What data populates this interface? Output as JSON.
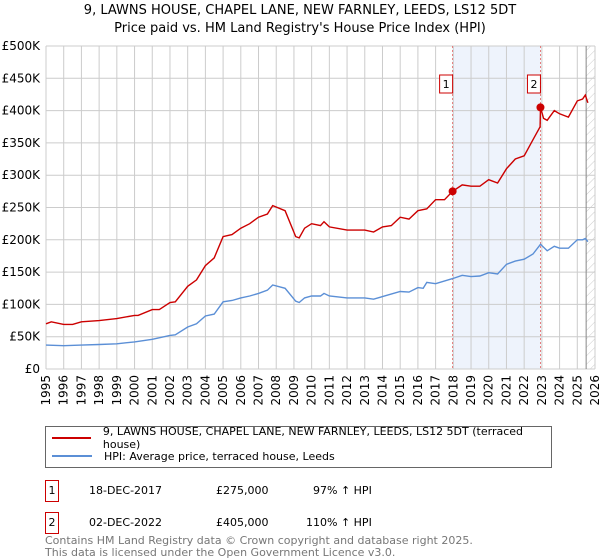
{
  "title": "9, LAWNS HOUSE, CHAPEL LANE, NEW FARNLEY, LEEDS, LS12 5DT",
  "subtitle": "Price paid vs. HM Land Registry's House Price Index (HPI)",
  "chart_data": {
    "type": "line",
    "xlim": [
      1995,
      2026
    ],
    "ylim": [
      0,
      500000
    ],
    "x_ticks": [
      "1995",
      "1996",
      "1997",
      "1998",
      "1999",
      "2000",
      "2001",
      "2002",
      "2003",
      "2004",
      "2005",
      "2006",
      "2007",
      "2008",
      "2009",
      "2010",
      "2011",
      "2012",
      "2013",
      "2014",
      "2015",
      "2016",
      "2017",
      "2018",
      "2019",
      "2020",
      "2021",
      "2022",
      "2023",
      "2024",
      "2025",
      "2026"
    ],
    "y_ticks": [
      {
        "v": 0,
        "label": "£0"
      },
      {
        "v": 50000,
        "label": "£50K"
      },
      {
        "v": 100000,
        "label": "£100K"
      },
      {
        "v": 150000,
        "label": "£150K"
      },
      {
        "v": 200000,
        "label": "£200K"
      },
      {
        "v": 250000,
        "label": "£250K"
      },
      {
        "v": 300000,
        "label": "£300K"
      },
      {
        "v": 350000,
        "label": "£350K"
      },
      {
        "v": 400000,
        "label": "£400K"
      },
      {
        "v": 450000,
        "label": "£450K"
      },
      {
        "v": 500000,
        "label": "£500K"
      }
    ],
    "grid": true,
    "shaded_range": [
      2017.96,
      2022.92
    ],
    "future_hatch_from": 2025.5,
    "series": [
      {
        "name": "9, LAWNS HOUSE, CHAPEL LANE, NEW FARNLEY, LEEDS, LS12 5DT (terraced house)",
        "color": "#cc0000",
        "x": [
          1995,
          1995.3,
          1996,
          1996.5,
          1997,
          1998,
          1999,
          2000,
          2000.2,
          2001,
          2001.4,
          2002,
          2002.3,
          2003,
          2003.5,
          2004,
          2004.5,
          2005,
          2005.5,
          2006,
          2006.5,
          2007,
          2007.5,
          2007.8,
          2008.5,
          2009.1,
          2009.3,
          2009.6,
          2010,
          2010.5,
          2010.7,
          2011,
          2012,
          2013,
          2013.5,
          2014,
          2014.5,
          2015,
          2015.5,
          2016,
          2016.5,
          2017,
          2017.5,
          2017.96,
          2018.5,
          2019,
          2019.5,
          2020,
          2020.5,
          2021,
          2021.5,
          2022,
          2022.5,
          2022.9,
          2022.92,
          2023.1,
          2023.3,
          2023.7,
          2024,
          2024.5,
          2025,
          2025.3,
          2025.45,
          2025.6
        ],
        "y": [
          70000,
          73000,
          69000,
          69000,
          73000,
          75000,
          78000,
          83000,
          83000,
          92000,
          92000,
          103000,
          104000,
          128000,
          138000,
          160000,
          172000,
          205000,
          208000,
          218000,
          225000,
          235000,
          240000,
          253000,
          245000,
          205000,
          203000,
          218000,
          225000,
          222000,
          228000,
          220000,
          215000,
          215000,
          212000,
          220000,
          222000,
          235000,
          232000,
          245000,
          248000,
          262000,
          262000,
          275000,
          285000,
          283000,
          283000,
          293000,
          288000,
          310000,
          325000,
          330000,
          355000,
          375000,
          405000,
          388000,
          385000,
          400000,
          395000,
          390000,
          415000,
          418000,
          424000,
          412000
        ]
      },
      {
        "name": "HPI: Average price, terraced house, Leeds",
        "color": "#5b8fd6",
        "x": [
          1995,
          1996,
          1997,
          1998,
          1999,
          2000,
          2001,
          2002,
          2002.3,
          2003,
          2003.5,
          2004,
          2004.5,
          2005,
          2005.5,
          2006,
          2006.5,
          2007,
          2007.5,
          2007.8,
          2008.5,
          2009.1,
          2009.3,
          2009.6,
          2010,
          2010.5,
          2010.7,
          2011,
          2012,
          2013,
          2013.5,
          2014,
          2015,
          2015.5,
          2016,
          2016.3,
          2016.5,
          2017,
          2017.96,
          2018.5,
          2019,
          2019.5,
          2020,
          2020.5,
          2021,
          2021.5,
          2022,
          2022.5,
          2022.92,
          2023.3,
          2023.7,
          2024,
          2024.5,
          2025,
          2025.3,
          2025.45,
          2025.6
        ],
        "y": [
          37000,
          36000,
          37000,
          38000,
          39000,
          42000,
          46000,
          52000,
          53000,
          65000,
          70000,
          82000,
          85000,
          104000,
          106000,
          110000,
          113000,
          117000,
          122000,
          130000,
          125000,
          105000,
          103000,
          110000,
          113000,
          113000,
          117000,
          113000,
          110000,
          110000,
          108000,
          112000,
          120000,
          119000,
          126000,
          125000,
          134000,
          132000,
          140000,
          145000,
          143000,
          144000,
          149000,
          147000,
          162000,
          167000,
          170000,
          178000,
          193000,
          183000,
          190000,
          187000,
          187000,
          200000,
          200000,
          202000,
          197000
        ]
      }
    ],
    "markers": [
      {
        "label": "1",
        "x": 2017.96,
        "y": 275000
      },
      {
        "label": "2",
        "x": 2022.92,
        "y": 405000
      }
    ]
  },
  "legend": {
    "items": [
      "9, LAWNS HOUSE, CHAPEL LANE, NEW FARNLEY, LEEDS, LS12 5DT (terraced house)",
      "HPI: Average price, terraced house, Leeds"
    ]
  },
  "transactions": [
    {
      "num": "1",
      "date": "18-DEC-2017",
      "price": "£275,000",
      "hpi": "97% ↑ HPI"
    },
    {
      "num": "2",
      "date": "02-DEC-2022",
      "price": "£405,000",
      "hpi": "110% ↑ HPI"
    }
  ],
  "footer": {
    "line1": "Contains HM Land Registry data © Crown copyright and database right 2025.",
    "line2": "This data is licensed under the Open Government Licence v3.0."
  }
}
